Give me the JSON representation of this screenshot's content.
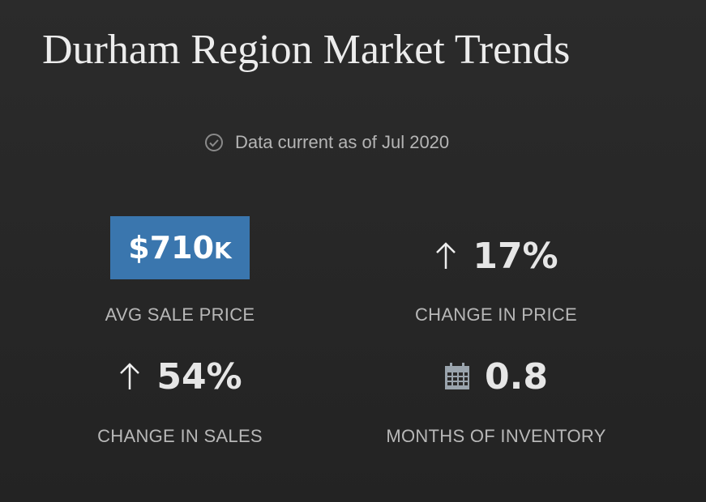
{
  "header": {
    "title": "Durham Region Market Trends",
    "subtitle": "Data current as of Jul 2020"
  },
  "stats": [
    {
      "value": "$710",
      "unit": "K",
      "label": "AVG SALE PRICE"
    },
    {
      "value": "17%",
      "label": "CHANGE IN PRICE"
    },
    {
      "value": "54%",
      "label": "CHANGE IN SALES"
    },
    {
      "value": "0.8",
      "label": "MONTHS OF INVENTORY"
    }
  ]
}
